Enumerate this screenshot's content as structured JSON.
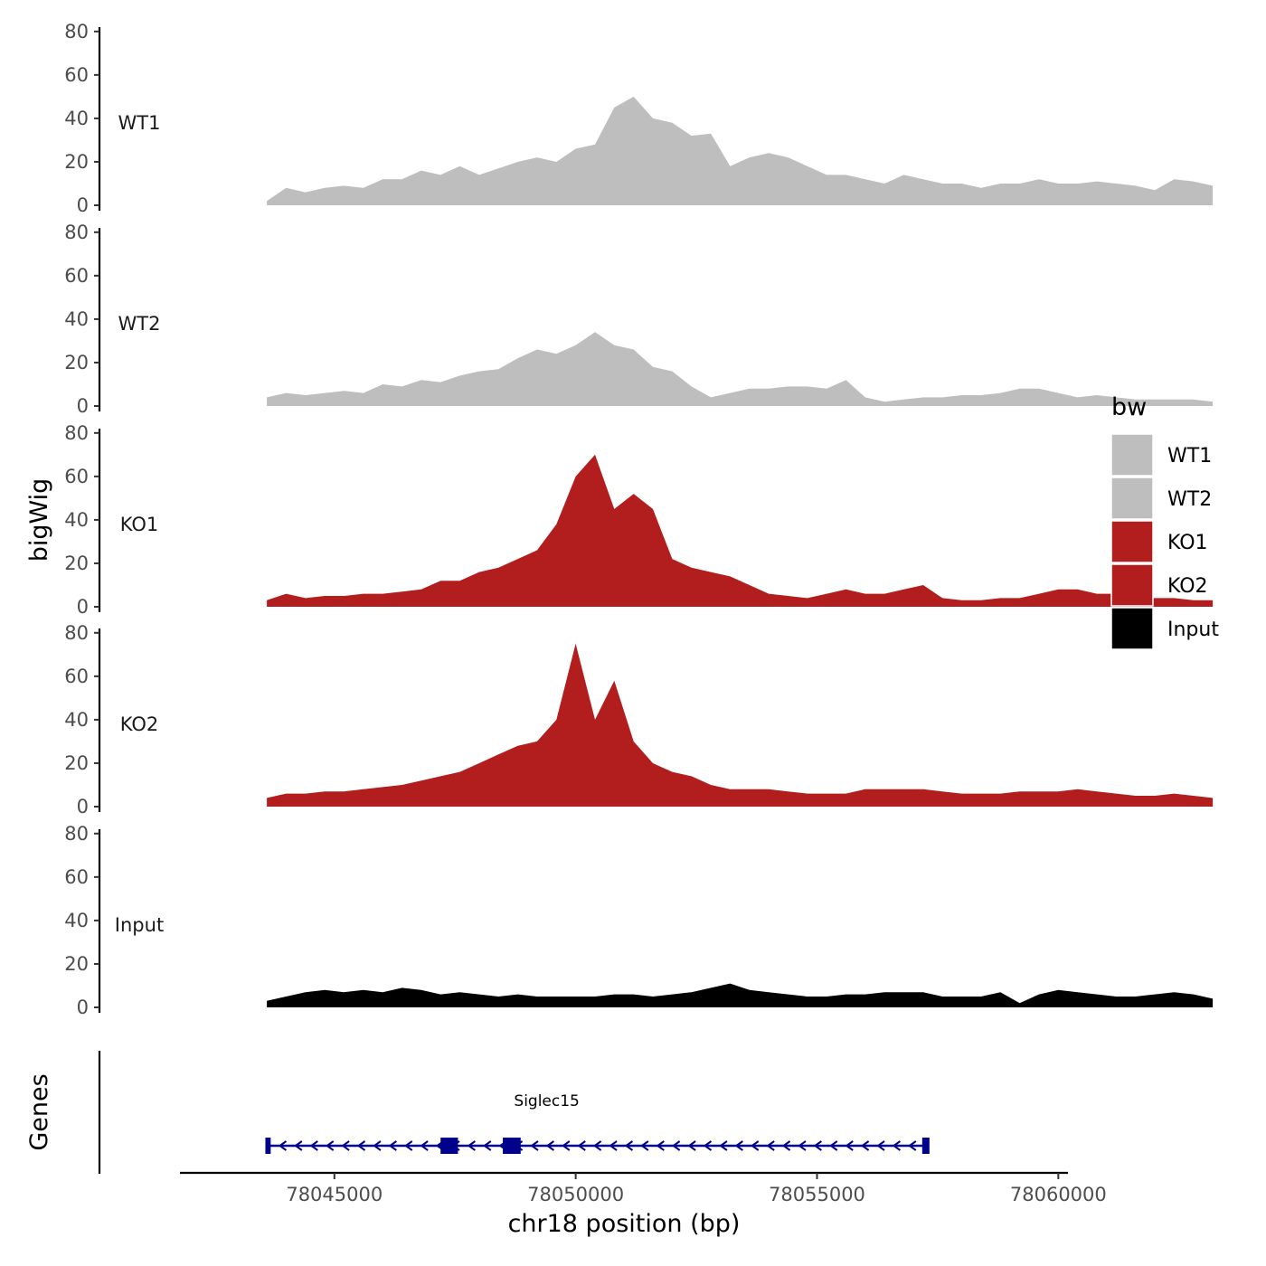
{
  "chart_data": {
    "type": "area",
    "title": "",
    "xlabel": "chr18 position (bp)",
    "ylabel": "bigWig",
    "gene_track_label": "Genes",
    "xlim": [
      78041800,
      78060200
    ],
    "ylim": [
      0,
      82
    ],
    "x_ticks": [
      78045000,
      78050000,
      78055000,
      78060000
    ],
    "x_tick_labels": [
      "78045000",
      "78050000",
      "78055000",
      "78060000"
    ],
    "y_ticks": [
      0,
      20,
      40,
      60,
      80
    ],
    "y_tick_labels": [
      "0",
      "20",
      "40",
      "60",
      "80"
    ],
    "legend": {
      "title": "bw",
      "position": "right",
      "entries": [
        {
          "label": "WT1",
          "color": "#BEBEBE"
        },
        {
          "label": "WT2",
          "color": "#BEBEBE"
        },
        {
          "label": "KO1",
          "color": "#B21E1E"
        },
        {
          "label": "KO2",
          "color": "#B21E1E"
        },
        {
          "label": "Input",
          "color": "#000000"
        }
      ]
    },
    "x_start": 78043600,
    "x_step": 400,
    "series": [
      {
        "name": "WT1",
        "color": "#BEBEBE",
        "values": [
          2,
          8,
          6,
          8,
          9,
          8,
          12,
          12,
          16,
          14,
          18,
          14,
          17,
          20,
          22,
          20,
          26,
          28,
          45,
          50,
          40,
          38,
          32,
          33,
          18,
          22,
          24,
          22,
          18,
          14,
          14,
          12,
          10,
          14,
          12,
          10,
          10,
          8,
          10,
          10,
          12,
          10,
          10,
          11,
          10,
          9,
          7,
          12,
          11,
          9
        ]
      },
      {
        "name": "WT2",
        "color": "#BEBEBE",
        "values": [
          4,
          6,
          5,
          6,
          7,
          6,
          10,
          9,
          12,
          11,
          14,
          16,
          17,
          22,
          26,
          24,
          28,
          34,
          28,
          26,
          18,
          16,
          9,
          4,
          6,
          8,
          8,
          9,
          9,
          8,
          12,
          4,
          2,
          3,
          4,
          4,
          5,
          5,
          6,
          8,
          8,
          6,
          4,
          5,
          4,
          3,
          3,
          3,
          3,
          2
        ]
      },
      {
        "name": "KO1",
        "color": "#B21E1E",
        "values": [
          3,
          6,
          4,
          5,
          5,
          6,
          6,
          7,
          8,
          12,
          12,
          16,
          18,
          22,
          26,
          38,
          60,
          70,
          45,
          52,
          45,
          22,
          18,
          16,
          14,
          10,
          6,
          5,
          4,
          6,
          8,
          6,
          6,
          8,
          10,
          4,
          3,
          3,
          4,
          4,
          6,
          8,
          8,
          6,
          6,
          4,
          4,
          4,
          3,
          3
        ]
      },
      {
        "name": "KO2",
        "color": "#B21E1E",
        "values": [
          4,
          6,
          6,
          7,
          7,
          8,
          9,
          10,
          12,
          14,
          16,
          20,
          24,
          28,
          30,
          40,
          75,
          40,
          58,
          30,
          20,
          16,
          14,
          10,
          8,
          8,
          8,
          7,
          6,
          6,
          6,
          8,
          8,
          8,
          8,
          7,
          6,
          6,
          6,
          7,
          7,
          7,
          8,
          7,
          6,
          5,
          5,
          6,
          5,
          4
        ]
      },
      {
        "name": "Input",
        "color": "#000000",
        "values": [
          3,
          5,
          7,
          8,
          7,
          8,
          7,
          9,
          8,
          6,
          7,
          6,
          5,
          6,
          5,
          5,
          5,
          5,
          6,
          6,
          5,
          6,
          7,
          9,
          11,
          8,
          7,
          6,
          5,
          5,
          6,
          6,
          7,
          7,
          7,
          5,
          5,
          5,
          7,
          2,
          6,
          8,
          7,
          6,
          5,
          5,
          6,
          7,
          6,
          4
        ]
      }
    ],
    "gene": {
      "name": "Siglec15",
      "strand": "-",
      "color": "#00008B",
      "start": 78043600,
      "end": 78057300,
      "exons": [
        [
          78043570,
          78043680
        ],
        [
          78047200,
          78047560
        ],
        [
          78048490,
          78048860
        ],
        [
          78057180,
          78057330
        ]
      ]
    }
  }
}
